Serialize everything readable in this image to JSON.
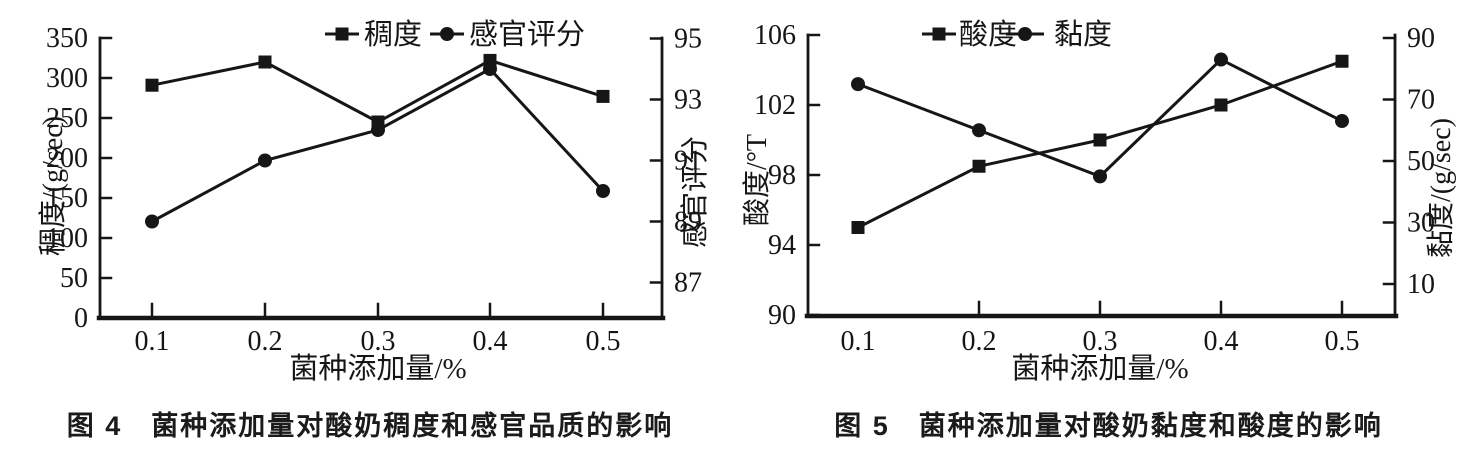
{
  "page": {
    "background": "#ffffff",
    "ink": "#161616"
  },
  "figures": [
    {
      "caption": "图 4　菌种添加量对酸奶稠度和感官品质的影响"
    },
    {
      "caption": "图 5　菌种添加量对酸奶黏度和酸度的影响"
    }
  ],
  "chart_data": [
    {
      "type": "line",
      "title": "图 4 菌种添加量对酸奶稠度和感官品质的影响",
      "x": [
        0.1,
        0.2,
        0.3,
        0.4,
        0.5
      ],
      "x_tick_labels": [
        "0.1",
        "0.2",
        "0.3",
        "0.4",
        "0.5"
      ],
      "x_ticks_marked": [
        "0.1",
        "0.2",
        "0.3",
        "0.4",
        "0.5"
      ],
      "xlabel": "菌种添加量/%",
      "grid": false,
      "legend_position": "top",
      "left_axis": {
        "label": "稠度/(g/sec)",
        "ticks": [
          0,
          50,
          100,
          150,
          200,
          250,
          300,
          350
        ],
        "range": [
          0,
          350
        ]
      },
      "right_axis": {
        "label": "感官评分",
        "ticks": [
          87,
          89,
          91,
          93,
          95
        ],
        "range": [
          86.4,
          95
        ]
      },
      "series": [
        {
          "name": "稠度",
          "axis": "left",
          "marker": "square",
          "color": "#161616",
          "values": [
            291,
            320,
            245,
            322,
            277
          ]
        },
        {
          "name": "感官评分",
          "axis": "right",
          "marker": "circle",
          "color": "#161616",
          "values": [
            89,
            91,
            92,
            94,
            90
          ]
        }
      ]
    },
    {
      "type": "line",
      "title": "图 5 菌种添加量对酸奶黏度和酸度的影响",
      "x": [
        0.1,
        0.2,
        0.3,
        0.4,
        0.5
      ],
      "x_tick_labels": [
        "0.1",
        "0.2",
        "0.3",
        "0.4",
        "0.5"
      ],
      "x_ticks_marked": [
        "0.2",
        "0.3",
        "0.4",
        "0.5"
      ],
      "xlabel": "菌种添加量/%",
      "grid": false,
      "legend_position": "top",
      "left_axis": {
        "label": "酸度/°T",
        "ticks": [
          90,
          94,
          98,
          102,
          106
        ],
        "range": [
          90,
          106
        ]
      },
      "right_axis": {
        "label": "黏度/(g/sec)",
        "ticks": [
          10,
          30,
          50,
          70,
          90
        ],
        "range": [
          0,
          91
        ]
      },
      "series": [
        {
          "name": "酸度",
          "axis": "left",
          "marker": "square",
          "color": "#161616",
          "values": [
            95,
            98.5,
            100,
            102,
            104.5
          ]
        },
        {
          "name": "黏度",
          "axis": "right",
          "marker": "circle",
          "color": "#161616",
          "values": [
            75,
            60,
            45,
            83,
            63
          ]
        }
      ]
    }
  ]
}
